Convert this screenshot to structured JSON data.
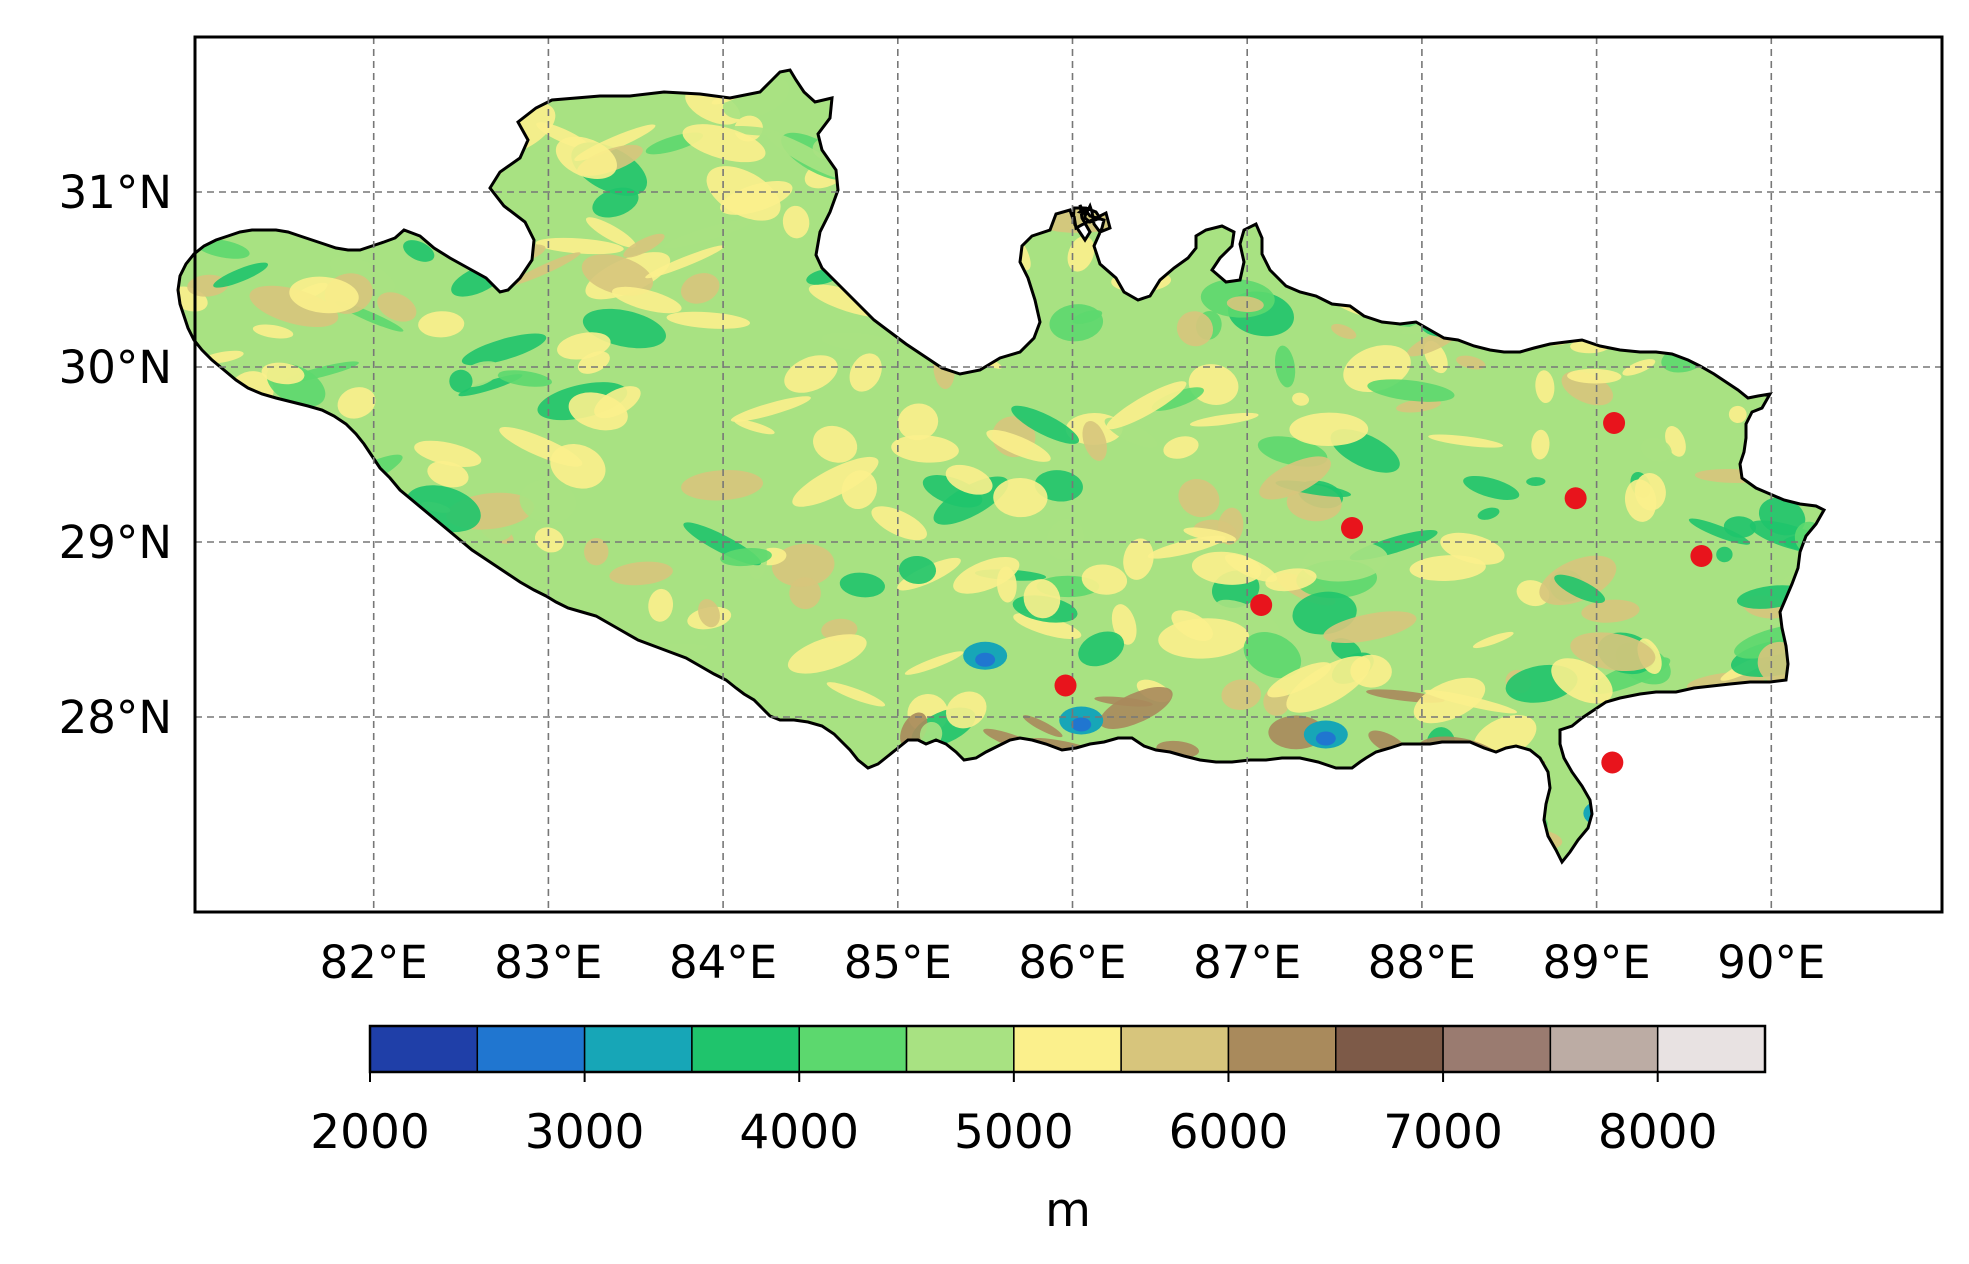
{
  "map": {
    "lon_range": [
      81,
      91
    ],
    "lat_range": [
      27,
      32
    ],
    "grid": true,
    "lon_ticks": [
      82,
      83,
      84,
      85,
      86,
      87,
      88,
      89,
      90
    ],
    "lon_tick_labels": [
      "82°E",
      "83°E",
      "84°E",
      "85°E",
      "86°E",
      "87°E",
      "88°E",
      "89°E",
      "90°E"
    ],
    "lat_ticks": [
      28,
      29,
      30,
      31
    ],
    "lat_tick_labels": [
      "28°N",
      "29°N",
      "30°N",
      "31°N"
    ],
    "stations": [
      {
        "lon": 85.96,
        "lat": 28.18
      },
      {
        "lon": 87.08,
        "lat": 28.64
      },
      {
        "lon": 87.6,
        "lat": 29.08
      },
      {
        "lon": 88.88,
        "lat": 29.25
      },
      {
        "lon": 89.1,
        "lat": 29.68
      },
      {
        "lon": 89.6,
        "lat": 28.92
      },
      {
        "lon": 89.09,
        "lat": 27.74
      }
    ],
    "station_color": "#e8141c",
    "boundary_color": "#000000"
  },
  "colorbar": {
    "unit": "m",
    "levels": [
      2000,
      2500,
      3000,
      3500,
      4000,
      4500,
      5000,
      5500,
      6000,
      6500,
      7000,
      7500,
      8000,
      8500
    ],
    "colors": [
      "#1f3fa8",
      "#2076d0",
      "#17a6b7",
      "#1fc46c",
      "#5cd86e",
      "#a8e282",
      "#fbf08c",
      "#d7c57c",
      "#a98a5c",
      "#7d5a48",
      "#9a7b70",
      "#bcaca4",
      "#e8e2e2"
    ],
    "tick_values": [
      2000,
      3000,
      4000,
      5000,
      6000,
      7000,
      8000
    ],
    "tick_labels": [
      "2000",
      "3000",
      "4000",
      "5000",
      "6000",
      "7000",
      "8000"
    ]
  }
}
